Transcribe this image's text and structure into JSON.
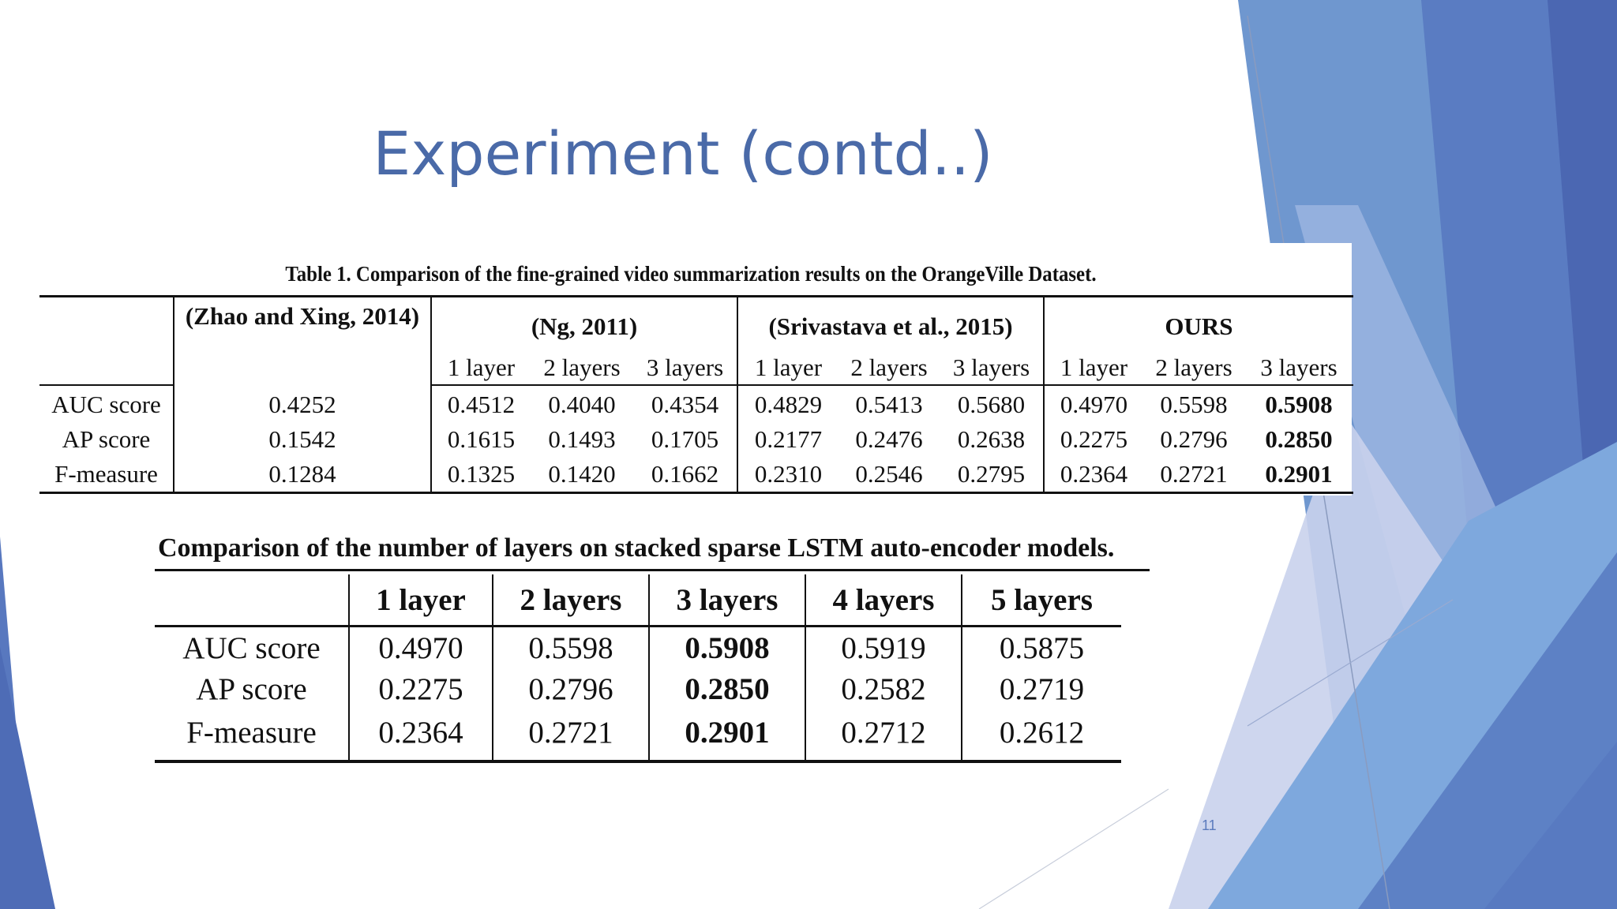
{
  "slide": {
    "title": "Experiment (contd..)",
    "number": "11"
  },
  "table1": {
    "caption": "Table 1. Comparison of the fine-grained video summarization results on the OrangeVille Dataset.",
    "groups": [
      "(Zhao and Xing, 2014)",
      "(Ng, 2011)",
      "(Srivastava et al., 2015)",
      "OURS"
    ],
    "sublabels": [
      "1 layer",
      "2 layers",
      "3 layers",
      "1 layer",
      "2 layers",
      "3 layers",
      "1 layer",
      "2 layers",
      "3 layers"
    ],
    "rows": [
      {
        "label": "AUC score",
        "values": [
          "0.4252",
          "0.4512",
          "0.4040",
          "0.4354",
          "0.4829",
          "0.5413",
          "0.5680",
          "0.4970",
          "0.5598",
          "0.5908"
        ]
      },
      {
        "label": "AP score",
        "values": [
          "0.1542",
          "0.1615",
          "0.1493",
          "0.1705",
          "0.2177",
          "0.2476",
          "0.2638",
          "0.2275",
          "0.2796",
          "0.2850"
        ]
      },
      {
        "label": "F-measure",
        "values": [
          "0.1284",
          "0.1325",
          "0.1420",
          "0.1662",
          "0.2310",
          "0.2546",
          "0.2795",
          "0.2364",
          "0.2721",
          "0.2901"
        ]
      }
    ]
  },
  "table2": {
    "caption": "Comparison of the number of layers on stacked sparse LSTM auto-encoder models.",
    "headers": [
      "1 layer",
      "2 layers",
      "3 layers",
      "4 layers",
      "5 layers"
    ],
    "rows": [
      {
        "label": "AUC score",
        "values": [
          "0.4970",
          "0.5598",
          "0.5908",
          "0.5919",
          "0.5875"
        ]
      },
      {
        "label": "AP score",
        "values": [
          "0.2275",
          "0.2796",
          "0.2850",
          "0.2582",
          "0.2719"
        ]
      },
      {
        "label": "F-measure",
        "values": [
          "0.2364",
          "0.2721",
          "0.2901",
          "0.2712",
          "0.2612"
        ]
      }
    ]
  },
  "theme": {
    "title_color": "#4a6aa8",
    "accent_blue": "#5577c0",
    "light_blue": "#86a9dc",
    "pale_blue": "#c7d1ea"
  }
}
